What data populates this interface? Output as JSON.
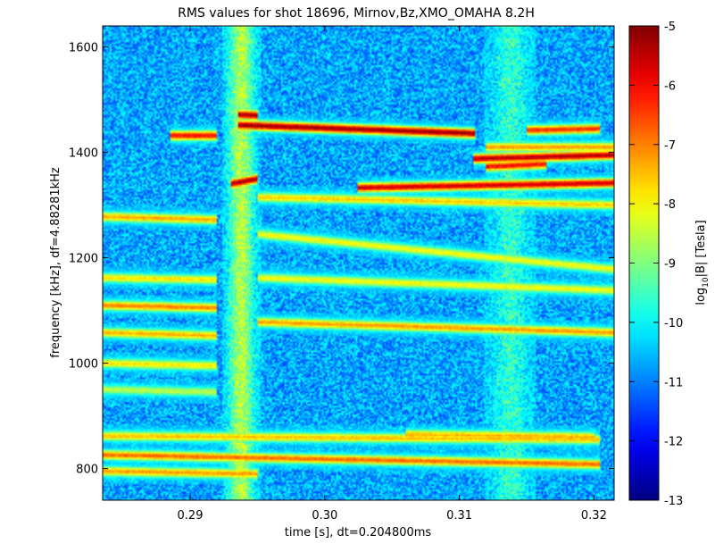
{
  "chart_data": {
    "type": "heatmap",
    "title": "RMS values for shot 18696,  Mirnov,Bz,XMO_OMAHA 8.2H",
    "xlabel": "time [s], dt=0.204800ms",
    "ylabel": "frequency [kHz], df=4.88281kHz",
    "xlim": [
      0.2835,
      0.3215
    ],
    "ylim": [
      740,
      1640
    ],
    "x_ticks": [
      {
        "value": 0.29,
        "label": "0.29"
      },
      {
        "value": 0.3,
        "label": "0.30"
      },
      {
        "value": 0.31,
        "label": "0.31"
      },
      {
        "value": 0.32,
        "label": "0.32"
      }
    ],
    "y_ticks": [
      {
        "value": 800,
        "label": "800"
      },
      {
        "value": 1000,
        "label": "1000"
      },
      {
        "value": 1200,
        "label": "1200"
      },
      {
        "value": 1400,
        "label": "1400"
      },
      {
        "value": 1600,
        "label": "1600"
      }
    ],
    "colorbar": {
      "label_main": "log",
      "label_sub": "10",
      "label_rest": "|B| [Tesla]",
      "range": [
        -13,
        -5
      ],
      "colormap": "jet",
      "ticks": [
        {
          "value": -5,
          "label": "-5"
        },
        {
          "value": -6,
          "label": "-6"
        },
        {
          "value": -7,
          "label": "-7"
        },
        {
          "value": -8,
          "label": "-8"
        },
        {
          "value": -9,
          "label": "-9"
        },
        {
          "value": -10,
          "label": "-10"
        },
        {
          "value": -11,
          "label": "-11"
        },
        {
          "value": -12,
          "label": "-12"
        },
        {
          "value": -13,
          "label": "-13"
        }
      ]
    },
    "background_level": -10.7,
    "bursts": [
      {
        "t": 0.2938,
        "width": 0.0012,
        "level": -8.6
      },
      {
        "t": 0.3138,
        "width": 0.0016,
        "level": -9.6
      }
    ],
    "modes": [
      {
        "t0": 0.2885,
        "t1": 0.292,
        "f0": 1432,
        "f1": 1432,
        "level": -6.0
      },
      {
        "t0": 0.2935,
        "t1": 0.3112,
        "f0": 1452,
        "f1": 1436,
        "level": -5.2
      },
      {
        "t0": 0.2935,
        "t1": 0.295,
        "f0": 1472,
        "f1": 1470,
        "level": -5.3
      },
      {
        "t0": 0.311,
        "t1": 0.3215,
        "f0": 1388,
        "f1": 1395,
        "level": -5.4
      },
      {
        "t0": 0.312,
        "t1": 0.3165,
        "f0": 1373,
        "f1": 1378,
        "level": -6.0
      },
      {
        "t0": 0.312,
        "t1": 0.3215,
        "f0": 1410,
        "f1": 1410,
        "level": -7.2
      },
      {
        "t0": 0.315,
        "t1": 0.3205,
        "f0": 1442,
        "f1": 1445,
        "level": -6.3
      },
      {
        "t0": 0.3025,
        "t1": 0.3215,
        "f0": 1333,
        "f1": 1342,
        "level": -5.6
      },
      {
        "t0": 0.293,
        "t1": 0.295,
        "f0": 1340,
        "f1": 1350,
        "level": -5.3
      },
      {
        "t0": 0.2835,
        "t1": 0.292,
        "f0": 1278,
        "f1": 1272,
        "level": -7.3
      },
      {
        "t0": 0.295,
        "t1": 0.3215,
        "f0": 1315,
        "f1": 1300,
        "level": -7.6
      },
      {
        "t0": 0.295,
        "t1": 0.3215,
        "f0": 1245,
        "f1": 1178,
        "level": -8.0
      },
      {
        "t0": 0.2835,
        "t1": 0.292,
        "f0": 1162,
        "f1": 1158,
        "level": -7.8
      },
      {
        "t0": 0.295,
        "t1": 0.3215,
        "f0": 1162,
        "f1": 1138,
        "level": -8.0
      },
      {
        "t0": 0.2835,
        "t1": 0.292,
        "f0": 1110,
        "f1": 1105,
        "level": -7.0
      },
      {
        "t0": 0.295,
        "t1": 0.3215,
        "f0": 1078,
        "f1": 1058,
        "level": -7.2
      },
      {
        "t0": 0.2835,
        "t1": 0.292,
        "f0": 1058,
        "f1": 1052,
        "level": -7.4
      },
      {
        "t0": 0.2835,
        "t1": 0.292,
        "f0": 1000,
        "f1": 995,
        "level": -7.8
      },
      {
        "t0": 0.2835,
        "t1": 0.292,
        "f0": 950,
        "f1": 945,
        "level": -8.5
      },
      {
        "t0": 0.2835,
        "t1": 0.3205,
        "f0": 862,
        "f1": 855,
        "level": -7.5
      },
      {
        "t0": 0.2835,
        "t1": 0.3205,
        "f0": 826,
        "f1": 808,
        "level": -6.8
      },
      {
        "t0": 0.2835,
        "t1": 0.295,
        "f0": 795,
        "f1": 790,
        "level": -7.2
      },
      {
        "t0": 0.306,
        "t1": 0.32,
        "f0": 865,
        "f1": 860,
        "level": -7.4
      }
    ]
  }
}
